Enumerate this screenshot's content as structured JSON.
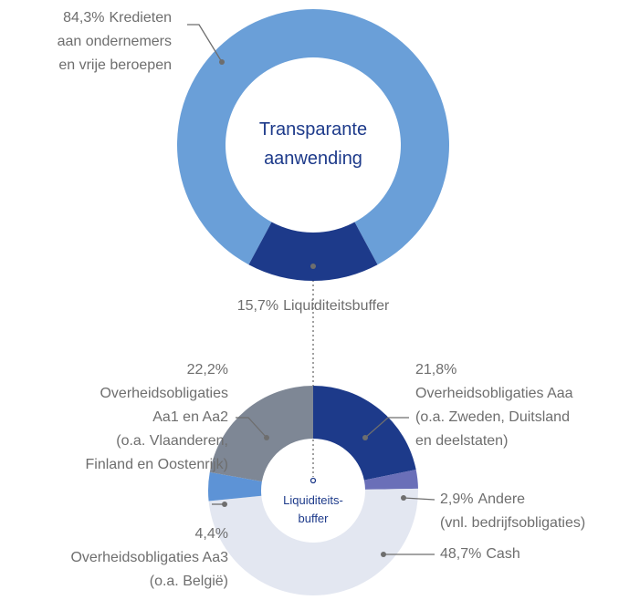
{
  "chart_data": [
    {
      "type": "donut",
      "center_label": [
        "Transparante",
        "aanwending"
      ],
      "categories": [
        [
          "Kredieten",
          "aan ondernemers",
          "en vrije beroepen"
        ],
        [
          "Liquiditeitsbuffer"
        ]
      ],
      "values": [
        84.3,
        15.7
      ],
      "value_labels": [
        "84,3%",
        "15,7%"
      ],
      "colors": [
        "#6a9fd8",
        "#1d3a8a"
      ]
    },
    {
      "type": "donut",
      "center_label": [
        "Liquiditeits-",
        "buffer"
      ],
      "categories": [
        [
          "Overheidsobligaties Aaa",
          "(o.a. Zweden, Duitsland",
          "en deelstaten)"
        ],
        [
          "Andere",
          "(vnl. bedrijfsobligaties)"
        ],
        [
          "Cash"
        ],
        [
          "Overheidsobligaties Aa3",
          "(o.a. België)"
        ],
        [
          "Overheidsobligaties",
          "Aa1 en Aa2",
          "(o.a. Vlaanderen,",
          "Finland en Oostenrijk)"
        ]
      ],
      "values": [
        21.8,
        2.9,
        48.7,
        4.4,
        22.2
      ],
      "value_labels": [
        "21,8%",
        "2,9%",
        "48,7%",
        "4,4%",
        "22,2%"
      ],
      "colors": [
        "#1d3a8a",
        "#6a6fb8",
        "#e3e7f1",
        "#5d93d6",
        "#7e8795"
      ]
    }
  ]
}
